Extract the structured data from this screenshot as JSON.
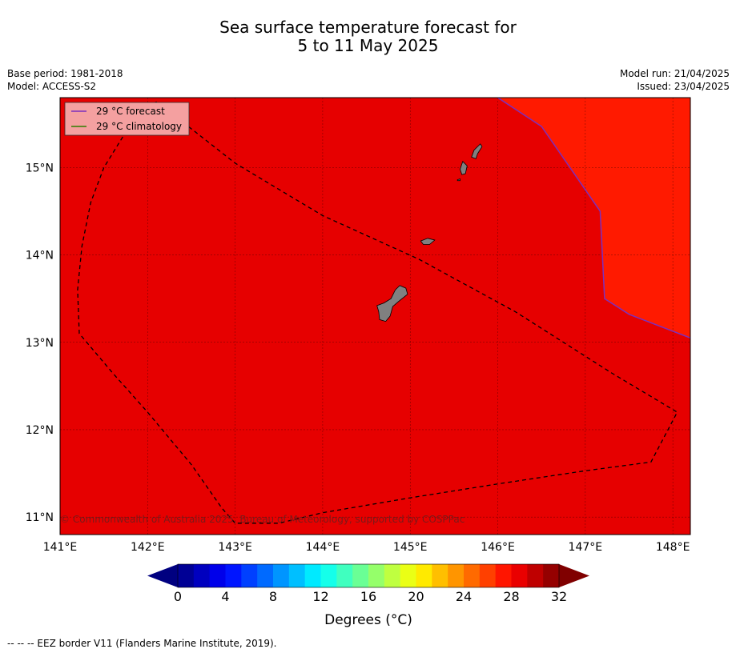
{
  "title": {
    "line1": "Sea surface temperature forecast for",
    "line2": "5 to 11 May 2025"
  },
  "meta": {
    "base_period": "Base period: 1981-2018",
    "model": "Model: ACCESS-S2",
    "model_run": "Model run: 21/04/2025",
    "issued": "Issued: 23/04/2025"
  },
  "map": {
    "extent": {
      "lon": [
        141.0,
        148.2
      ],
      "lat": [
        10.8,
        15.8
      ]
    },
    "lon_ticks": [
      141,
      142,
      143,
      144,
      145,
      146,
      147,
      148
    ],
    "lon_labels": [
      "141°E",
      "142°E",
      "143°E",
      "144°E",
      "145°E",
      "146°E",
      "147°E",
      "148°E"
    ],
    "lat_ticks": [
      15,
      14,
      13,
      12,
      11
    ],
    "lat_labels": [
      "15°N",
      "14°N",
      "13°N",
      "12°N",
      "11°N"
    ],
    "colors": {
      "base_fill": "#e60000",
      "warm_fill": "#ff1a00",
      "land": "#808080",
      "forecast_line": "#7b2fbe",
      "climatology_line": "#2e7d00",
      "legend_bg": "#f4a0a0"
    },
    "legend": {
      "forecast": "29 °C  forecast",
      "climatology": "29 °C  climatology"
    },
    "copyright": "© Commonwealth of Australia 2025, Bureau of Meteorology, supported by COSPPac",
    "contour_29_forecast": [
      [
        146.0,
        15.8
      ],
      [
        146.5,
        15.47
      ],
      [
        147.17,
        14.5
      ],
      [
        147.22,
        13.5
      ],
      [
        147.5,
        13.32
      ],
      [
        148.2,
        13.05
      ]
    ],
    "eez_border": [
      [
        142.3,
        15.6
      ],
      [
        142.1,
        15.75
      ],
      [
        141.9,
        15.65
      ],
      [
        141.5,
        15.0
      ],
      [
        141.35,
        14.6
      ],
      [
        141.25,
        14.1
      ],
      [
        141.2,
        13.6
      ],
      [
        141.22,
        13.1
      ],
      [
        141.6,
        12.65
      ],
      [
        142.0,
        12.2
      ],
      [
        142.5,
        11.6
      ],
      [
        142.85,
        11.1
      ],
      [
        143.0,
        10.93
      ],
      [
        143.5,
        10.93
      ],
      [
        144.0,
        11.05
      ],
      [
        145.0,
        11.22
      ],
      [
        146.0,
        11.38
      ],
      [
        147.0,
        11.53
      ],
      [
        147.75,
        11.63
      ],
      [
        148.05,
        12.2
      ],
      [
        147.3,
        12.65
      ],
      [
        146.2,
        13.35
      ],
      [
        145.1,
        13.95
      ],
      [
        144.0,
        14.45
      ],
      [
        143.0,
        15.05
      ],
      [
        142.3,
        15.6
      ]
    ],
    "islands": [
      {
        "name": "Guam",
        "polygon": [
          [
            144.88,
            13.65
          ],
          [
            144.95,
            13.62
          ],
          [
            144.97,
            13.55
          ],
          [
            144.87,
            13.47
          ],
          [
            144.8,
            13.41
          ],
          [
            144.77,
            13.3
          ],
          [
            144.72,
            13.24
          ],
          [
            144.65,
            13.26
          ],
          [
            144.64,
            13.35
          ],
          [
            144.62,
            13.42
          ],
          [
            144.7,
            13.45
          ],
          [
            144.78,
            13.5
          ],
          [
            144.83,
            13.6
          ]
        ]
      },
      {
        "name": "Rota",
        "polygon": [
          [
            145.12,
            14.16
          ],
          [
            145.2,
            14.19
          ],
          [
            145.28,
            14.17
          ],
          [
            145.22,
            14.12
          ],
          [
            145.15,
            14.12
          ]
        ]
      },
      {
        "name": "Tinian",
        "polygon": [
          [
            145.6,
            15.07
          ],
          [
            145.65,
            15.02
          ],
          [
            145.63,
            14.93
          ],
          [
            145.59,
            14.92
          ],
          [
            145.57,
            14.98
          ]
        ]
      },
      {
        "name": "Saipan",
        "polygon": [
          [
            145.8,
            15.27
          ],
          [
            145.73,
            15.2
          ],
          [
            145.7,
            15.12
          ],
          [
            145.75,
            15.1
          ],
          [
            145.77,
            15.16
          ],
          [
            145.82,
            15.24
          ]
        ]
      },
      {
        "name": "Aguijan",
        "polygon": [
          [
            145.54,
            14.86
          ],
          [
            145.57,
            14.87
          ],
          [
            145.57,
            14.85
          ],
          [
            145.54,
            14.85
          ]
        ]
      }
    ]
  },
  "colorbar": {
    "vmin": 0,
    "vmax": 32,
    "step": 1.33,
    "tick_values": [
      0,
      4,
      8,
      12,
      16,
      20,
      24,
      28,
      32
    ],
    "tick_labels": [
      "0",
      "4",
      "8",
      "12",
      "16",
      "20",
      "24",
      "28",
      "32"
    ],
    "label": "Degrees (°C)",
    "under_color": "#000080",
    "over_color": "#800000"
  },
  "footer": "--  --  -- EEZ border V11 (Flanders Marine Institute, 2019)."
}
